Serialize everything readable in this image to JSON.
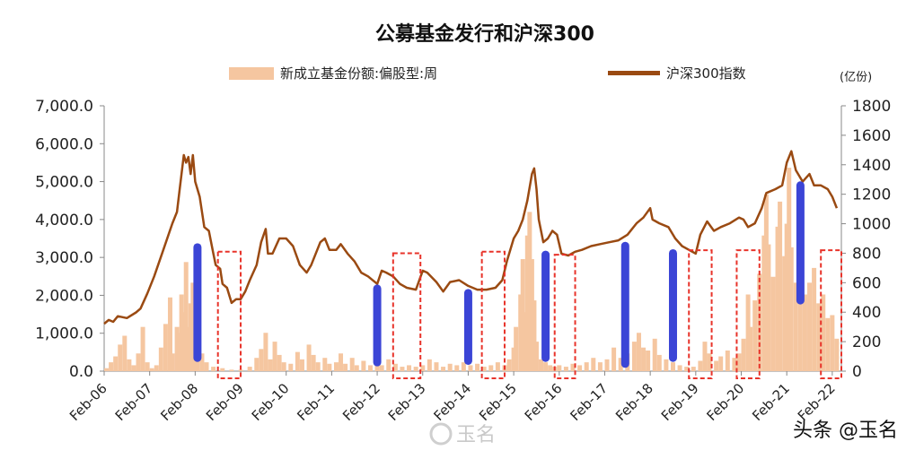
{
  "chart_data": {
    "type": "bar+line",
    "title": "公募基金发行和沪深300",
    "right_unit": "(亿份)",
    "left_axis": {
      "ticks": [
        "0.0",
        "1,000.0",
        "2,000.0",
        "3,000.0",
        "4,000.0",
        "5,000.0",
        "6,000.0",
        "7,000.0"
      ],
      "range": [
        0,
        7000
      ]
    },
    "right_axis": {
      "ticks": [
        "0",
        "200",
        "400",
        "600",
        "800",
        "1000",
        "1200",
        "1400",
        "1600",
        "1800"
      ],
      "range": [
        0,
        1800
      ]
    },
    "x_ticks": [
      "Feb-06",
      "Feb-07",
      "Feb-08",
      "Feb-09",
      "Feb-10",
      "Feb-11",
      "Feb-12",
      "Feb-13",
      "Feb-14",
      "Feb-15",
      "Feb-16",
      "Feb-17",
      "Feb-18",
      "Feb-19",
      "Feb-20",
      "Feb-21",
      "Feb-22"
    ],
    "x_range": [
      2006.0,
      2022.2
    ],
    "legend": [
      {
        "label": "新成立基金份额:偏股型:周",
        "kind": "bar",
        "color": "#f5c6a0"
      },
      {
        "label": "沪深300指数",
        "kind": "line",
        "color": "#9a4a12"
      }
    ],
    "series": [
      {
        "name": "沪深300指数",
        "axis": "left",
        "points": [
          [
            2006.0,
            1250
          ],
          [
            2006.1,
            1350
          ],
          [
            2006.2,
            1300
          ],
          [
            2006.3,
            1450
          ],
          [
            2006.5,
            1400
          ],
          [
            2006.7,
            1550
          ],
          [
            2006.8,
            1650
          ],
          [
            2006.95,
            2050
          ],
          [
            2007.1,
            2500
          ],
          [
            2007.3,
            3200
          ],
          [
            2007.5,
            3900
          ],
          [
            2007.6,
            4200
          ],
          [
            2007.65,
            4700
          ],
          [
            2007.75,
            5700
          ],
          [
            2007.8,
            5500
          ],
          [
            2007.85,
            5650
          ],
          [
            2007.9,
            5200
          ],
          [
            2007.95,
            5700
          ],
          [
            2008.0,
            5000
          ],
          [
            2008.1,
            4600
          ],
          [
            2008.2,
            3800
          ],
          [
            2008.3,
            3700
          ],
          [
            2008.4,
            3100
          ],
          [
            2008.45,
            2800
          ],
          [
            2008.55,
            2700
          ],
          [
            2008.6,
            2300
          ],
          [
            2008.7,
            2200
          ],
          [
            2008.8,
            1800
          ],
          [
            2008.9,
            1900
          ],
          [
            2009.0,
            1900
          ],
          [
            2009.1,
            2100
          ],
          [
            2009.2,
            2400
          ],
          [
            2009.35,
            2800
          ],
          [
            2009.45,
            3400
          ],
          [
            2009.55,
            3750
          ],
          [
            2009.6,
            3100
          ],
          [
            2009.7,
            3100
          ],
          [
            2009.85,
            3500
          ],
          [
            2010.0,
            3500
          ],
          [
            2010.15,
            3300
          ],
          [
            2010.3,
            2800
          ],
          [
            2010.45,
            2600
          ],
          [
            2010.55,
            2800
          ],
          [
            2010.75,
            3400
          ],
          [
            2010.85,
            3500
          ],
          [
            2010.95,
            3200
          ],
          [
            2011.1,
            3200
          ],
          [
            2011.2,
            3350
          ],
          [
            2011.35,
            3100
          ],
          [
            2011.5,
            2900
          ],
          [
            2011.65,
            2600
          ],
          [
            2011.8,
            2500
          ],
          [
            2012.0,
            2300
          ],
          [
            2012.1,
            2650
          ],
          [
            2012.2,
            2600
          ],
          [
            2012.35,
            2500
          ],
          [
            2012.5,
            2300
          ],
          [
            2012.65,
            2200
          ],
          [
            2012.85,
            2150
          ],
          [
            2013.0,
            2650
          ],
          [
            2013.1,
            2600
          ],
          [
            2013.3,
            2350
          ],
          [
            2013.45,
            2100
          ],
          [
            2013.6,
            2350
          ],
          [
            2013.8,
            2400
          ],
          [
            2014.0,
            2250
          ],
          [
            2014.2,
            2150
          ],
          [
            2014.4,
            2150
          ],
          [
            2014.6,
            2200
          ],
          [
            2014.75,
            2400
          ],
          [
            2014.85,
            2900
          ],
          [
            2015.0,
            3500
          ],
          [
            2015.1,
            3700
          ],
          [
            2015.2,
            4000
          ],
          [
            2015.3,
            4500
          ],
          [
            2015.4,
            5200
          ],
          [
            2015.45,
            5350
          ],
          [
            2015.5,
            4800
          ],
          [
            2015.55,
            4000
          ],
          [
            2015.65,
            3400
          ],
          [
            2015.75,
            3500
          ],
          [
            2015.85,
            3700
          ],
          [
            2015.95,
            3600
          ],
          [
            2016.05,
            3100
          ],
          [
            2016.2,
            3050
          ],
          [
            2016.35,
            3150
          ],
          [
            2016.5,
            3200
          ],
          [
            2016.7,
            3300
          ],
          [
            2016.9,
            3350
          ],
          [
            2017.1,
            3400
          ],
          [
            2017.3,
            3450
          ],
          [
            2017.5,
            3600
          ],
          [
            2017.7,
            3900
          ],
          [
            2017.85,
            4050
          ],
          [
            2018.0,
            4300
          ],
          [
            2018.05,
            4000
          ],
          [
            2018.2,
            3900
          ],
          [
            2018.4,
            3800
          ],
          [
            2018.55,
            3500
          ],
          [
            2018.7,
            3300
          ],
          [
            2018.85,
            3200
          ],
          [
            2019.0,
            3100
          ],
          [
            2019.1,
            3600
          ],
          [
            2019.25,
            3950
          ],
          [
            2019.4,
            3700
          ],
          [
            2019.55,
            3800
          ],
          [
            2019.75,
            3900
          ],
          [
            2019.95,
            4050
          ],
          [
            2020.05,
            4000
          ],
          [
            2020.15,
            3800
          ],
          [
            2020.3,
            3900
          ],
          [
            2020.45,
            4300
          ],
          [
            2020.55,
            4700
          ],
          [
            2020.75,
            4800
          ],
          [
            2020.9,
            4900
          ],
          [
            2021.0,
            5500
          ],
          [
            2021.1,
            5800
          ],
          [
            2021.2,
            5300
          ],
          [
            2021.35,
            5000
          ],
          [
            2021.5,
            5200
          ],
          [
            2021.6,
            4900
          ],
          [
            2021.75,
            4900
          ],
          [
            2021.9,
            4800
          ],
          [
            2022.0,
            4600
          ],
          [
            2022.1,
            4300
          ]
        ]
      },
      {
        "name": "新成立基金份额:偏股型:周",
        "axis": "right",
        "points": [
          [
            2006.05,
            20
          ],
          [
            2006.15,
            60
          ],
          [
            2006.25,
            100
          ],
          [
            2006.35,
            180
          ],
          [
            2006.45,
            240
          ],
          [
            2006.55,
            80
          ],
          [
            2006.65,
            40
          ],
          [
            2006.75,
            120
          ],
          [
            2006.85,
            300
          ],
          [
            2006.95,
            60
          ],
          [
            2007.05,
            20
          ],
          [
            2007.15,
            40
          ],
          [
            2007.25,
            160
          ],
          [
            2007.35,
            320
          ],
          [
            2007.45,
            500
          ],
          [
            2007.5,
            120
          ],
          [
            2007.6,
            300
          ],
          [
            2007.65,
            260
          ],
          [
            2007.7,
            520
          ],
          [
            2007.75,
            400
          ],
          [
            2007.8,
            740
          ],
          [
            2007.85,
            300
          ],
          [
            2007.9,
            460
          ],
          [
            2007.95,
            600
          ],
          [
            2008.0,
            200
          ],
          [
            2008.05,
            350
          ],
          [
            2008.15,
            120
          ],
          [
            2008.25,
            60
          ],
          [
            2008.4,
            30
          ],
          [
            2008.6,
            20
          ],
          [
            2008.8,
            10
          ],
          [
            2009.0,
            10
          ],
          [
            2009.2,
            30
          ],
          [
            2009.35,
            90
          ],
          [
            2009.45,
            150
          ],
          [
            2009.55,
            260
          ],
          [
            2009.65,
            80
          ],
          [
            2009.75,
            200
          ],
          [
            2009.85,
            110
          ],
          [
            2009.95,
            60
          ],
          [
            2010.1,
            50
          ],
          [
            2010.25,
            130
          ],
          [
            2010.35,
            80
          ],
          [
            2010.5,
            180
          ],
          [
            2010.6,
            110
          ],
          [
            2010.7,
            60
          ],
          [
            2010.85,
            90
          ],
          [
            2010.95,
            50
          ],
          [
            2011.1,
            60
          ],
          [
            2011.2,
            120
          ],
          [
            2011.3,
            50
          ],
          [
            2011.45,
            90
          ],
          [
            2011.55,
            40
          ],
          [
            2011.7,
            70
          ],
          [
            2011.85,
            40
          ],
          [
            2012.0,
            90
          ],
          [
            2012.1,
            40
          ],
          [
            2012.25,
            80
          ],
          [
            2012.4,
            50
          ],
          [
            2012.55,
            30
          ],
          [
            2012.7,
            40
          ],
          [
            2012.85,
            30
          ],
          [
            2013.0,
            40
          ],
          [
            2013.15,
            80
          ],
          [
            2013.3,
            60
          ],
          [
            2013.45,
            30
          ],
          [
            2013.6,
            50
          ],
          [
            2013.75,
            40
          ],
          [
            2013.9,
            60
          ],
          [
            2014.05,
            40
          ],
          [
            2014.2,
            50
          ],
          [
            2014.35,
            30
          ],
          [
            2014.5,
            40
          ],
          [
            2014.65,
            60
          ],
          [
            2014.8,
            40
          ],
          [
            2014.9,
            80
          ],
          [
            2015.0,
            160
          ],
          [
            2015.05,
            300
          ],
          [
            2015.15,
            520
          ],
          [
            2015.2,
            760
          ],
          [
            2015.25,
            400
          ],
          [
            2015.3,
            920
          ],
          [
            2015.35,
            1080
          ],
          [
            2015.4,
            760
          ],
          [
            2015.45,
            480
          ],
          [
            2015.5,
            200
          ],
          [
            2015.6,
            80
          ],
          [
            2015.7,
            60
          ],
          [
            2015.8,
            40
          ],
          [
            2015.9,
            30
          ],
          [
            2016.0,
            40
          ],
          [
            2016.15,
            30
          ],
          [
            2016.3,
            50
          ],
          [
            2016.45,
            40
          ],
          [
            2016.6,
            60
          ],
          [
            2016.75,
            90
          ],
          [
            2016.9,
            60
          ],
          [
            2017.05,
            80
          ],
          [
            2017.2,
            160
          ],
          [
            2017.35,
            90
          ],
          [
            2017.5,
            120
          ],
          [
            2017.65,
            200
          ],
          [
            2017.75,
            260
          ],
          [
            2017.85,
            160
          ],
          [
            2017.95,
            140
          ],
          [
            2018.1,
            220
          ],
          [
            2018.2,
            110
          ],
          [
            2018.35,
            80
          ],
          [
            2018.5,
            60
          ],
          [
            2018.65,
            40
          ],
          [
            2018.8,
            30
          ],
          [
            2018.95,
            30
          ],
          [
            2019.1,
            70
          ],
          [
            2019.2,
            200
          ],
          [
            2019.3,
            120
          ],
          [
            2019.45,
            70
          ],
          [
            2019.55,
            100
          ],
          [
            2019.7,
            140
          ],
          [
            2019.85,
            90
          ],
          [
            2019.95,
            120
          ],
          [
            2020.05,
            220
          ],
          [
            2020.15,
            520
          ],
          [
            2020.2,
            300
          ],
          [
            2020.3,
            480
          ],
          [
            2020.4,
            660
          ],
          [
            2020.5,
            920
          ],
          [
            2020.55,
            1200
          ],
          [
            2020.6,
            860
          ],
          [
            2020.7,
            640
          ],
          [
            2020.8,
            980
          ],
          [
            2020.85,
            1150
          ],
          [
            2020.95,
            780
          ],
          [
            2021.0,
            1000
          ],
          [
            2021.05,
            1380
          ],
          [
            2021.1,
            840
          ],
          [
            2021.2,
            600
          ],
          [
            2021.3,
            760
          ],
          [
            2021.4,
            520
          ],
          [
            2021.5,
            600
          ],
          [
            2021.6,
            700
          ],
          [
            2021.7,
            460
          ],
          [
            2021.8,
            520
          ],
          [
            2021.9,
            360
          ],
          [
            2022.0,
            380
          ],
          [
            2022.1,
            220
          ]
        ]
      }
    ],
    "annotations": {
      "blue_bars": [
        {
          "x": 2008.05,
          "y": [
            90,
            840
          ]
        },
        {
          "x": 2012.0,
          "y": [
            60,
            560
          ]
        },
        {
          "x": 2014.0,
          "y": [
            70,
            530
          ]
        },
        {
          "x": 2015.7,
          "y": [
            90,
            790
          ]
        },
        {
          "x": 2017.45,
          "y": [
            50,
            850
          ]
        },
        {
          "x": 2018.5,
          "y": [
            90,
            800
          ]
        },
        {
          "x": 2021.3,
          "y": [
            480,
            1260
          ]
        }
      ],
      "red_boxes": [
        {
          "x": [
            2008.5,
            2009.0
          ],
          "y": [
            0,
            810
          ]
        },
        {
          "x": [
            2012.35,
            2012.95
          ],
          "y": [
            0,
            800
          ]
        },
        {
          "x": [
            2014.3,
            2014.8
          ],
          "y": [
            0,
            810
          ]
        },
        {
          "x": [
            2015.9,
            2016.35
          ],
          "y": [
            0,
            790
          ]
        },
        {
          "x": [
            2018.85,
            2019.35
          ],
          "y": [
            0,
            820
          ]
        },
        {
          "x": [
            2019.9,
            2020.4
          ],
          "y": [
            0,
            820
          ]
        },
        {
          "x": [
            2021.75,
            2022.2
          ],
          "y": [
            0,
            820
          ]
        }
      ]
    }
  },
  "watermark": "玉名",
  "credit": "头条 @玉名"
}
